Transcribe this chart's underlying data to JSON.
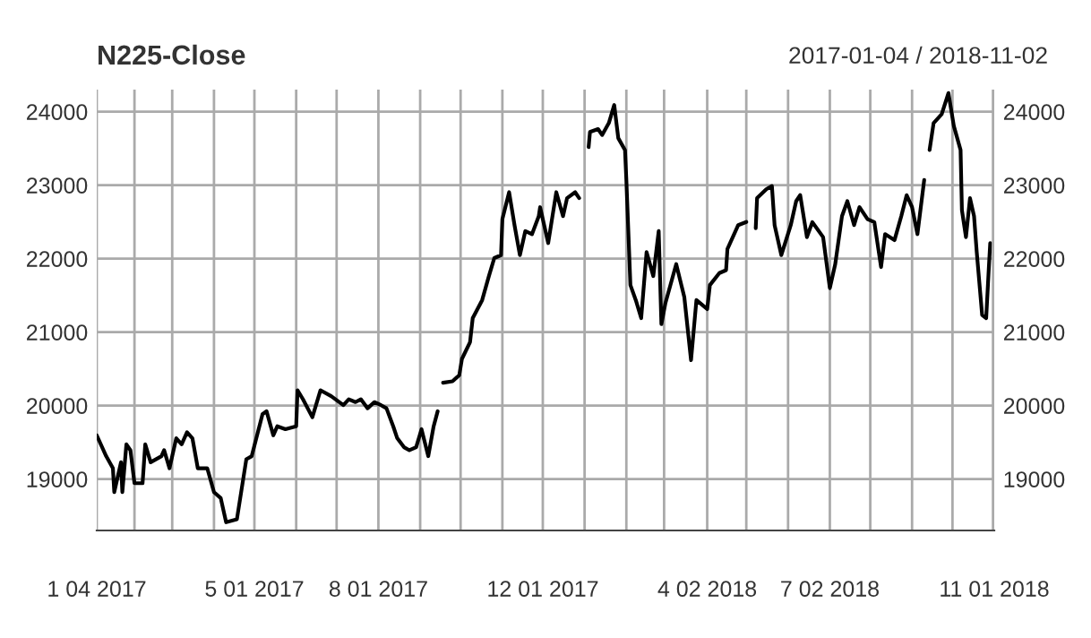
{
  "chart_data": {
    "type": "line",
    "title": "N225-Close",
    "subtitle": "2017-01-04 / 2018-11-02",
    "x": [
      "2017-01-04",
      "2017-01-11",
      "2017-01-16",
      "2017-01-17",
      "2017-01-22",
      "2017-01-23",
      "2017-01-26",
      "2017-01-29",
      "2017-02-01",
      "2017-02-07",
      "2017-02-09",
      "2017-02-13",
      "2017-02-21",
      "2017-02-23",
      "2017-02-27",
      "2017-03-04",
      "2017-03-08",
      "2017-03-12",
      "2017-03-16",
      "2017-03-20",
      "2017-03-27",
      "2017-04-01",
      "2017-04-06",
      "2017-04-10",
      "2017-04-18",
      "2017-04-25",
      "2017-04-29",
      "2017-05-07",
      "2017-05-10",
      "2017-05-15",
      "2017-05-18",
      "2017-05-24",
      "2017-06-01",
      "2017-06-02",
      "2017-06-06",
      "2017-06-13",
      "2017-06-19",
      "2017-06-27",
      "2017-07-06",
      "2017-07-10",
      "2017-07-15",
      "2017-07-19",
      "2017-07-24",
      "2017-07-29",
      "2017-08-03",
      "2017-08-07",
      "2017-08-12",
      "2017-08-15",
      "2017-08-20",
      "2017-08-24",
      "2017-08-29",
      "2017-09-02",
      "2017-09-07",
      "2017-09-11",
      "2017-09-14",
      "2017-09-17",
      "2017-09-18",
      "2017-09-25",
      "2017-09-30",
      "2017-10-02",
      "2017-10-08",
      "2017-10-10",
      "2017-10-17",
      "2017-10-22",
      "2017-10-26",
      "2017-10-31",
      "2017-11-01",
      "2017-11-06",
      "2017-11-10",
      "2017-11-14",
      "2017-11-18",
      "2017-11-23",
      "2017-11-28",
      "2017-11-29",
      "2017-12-05",
      "2017-12-11",
      "2017-12-16",
      "2017-12-19",
      "2017-12-25",
      "2017-12-28",
      "2018-01-01",
      "2018-01-04",
      "2018-01-05",
      "2018-01-11",
      "2018-01-14",
      "2018-01-19",
      "2018-01-23",
      "2018-01-26",
      "2018-01-31",
      "2018-02-01",
      "2018-02-04",
      "2018-02-08",
      "2018-02-12",
      "2018-02-16",
      "2018-02-21",
      "2018-02-25",
      "2018-02-27",
      "2018-03-02",
      "2018-03-10",
      "2018-03-16",
      "2018-03-21",
      "2018-03-25",
      "2018-04-02",
      "2018-04-04",
      "2018-04-11",
      "2018-04-16",
      "2018-04-17",
      "2018-04-25",
      "2018-05-01",
      "2018-05-04",
      "2018-05-08",
      "2018-05-09",
      "2018-05-16",
      "2018-05-20",
      "2018-05-22",
      "2018-05-27",
      "2018-06-03",
      "2018-06-07",
      "2018-06-10",
      "2018-06-15",
      "2018-06-19",
      "2018-06-27",
      "2018-07-02",
      "2018-07-06",
      "2018-07-11",
      "2018-07-15",
      "2018-07-20",
      "2018-07-24",
      "2018-07-30",
      "2018-08-04",
      "2018-08-09",
      "2018-08-12",
      "2018-08-19",
      "2018-08-24",
      "2018-08-28",
      "2018-09-01",
      "2018-09-05",
      "2018-09-10",
      "2018-09-13",
      "2018-09-14",
      "2018-09-17",
      "2018-09-23",
      "2018-09-28",
      "2018-10-02",
      "2018-10-07",
      "2018-10-08",
      "2018-10-11",
      "2018-10-14",
      "2018-10-17",
      "2018-10-19",
      "2018-10-23",
      "2018-10-26",
      "2018-10-28",
      "2018-10-29"
    ],
    "series": [
      {
        "color": "#000000",
        "values": [
          19595,
          19311,
          19147,
          18822,
          19228,
          18822,
          19473,
          19392,
          18943,
          18943,
          19473,
          19228,
          19311,
          19392,
          19147,
          19555,
          19473,
          19637,
          19555,
          19147,
          19147,
          18822,
          18740,
          18412,
          18453,
          19269,
          19311,
          19882,
          19923,
          19595,
          19718,
          19678,
          19718,
          20208,
          20086,
          19841,
          20208,
          20127,
          20005,
          20086,
          20047,
          20086,
          19963,
          20047,
          20005,
          19963,
          19718,
          19555,
          19433,
          19392,
          19433,
          19678,
          19311,
          19718,
          19923,
          null,
          20310,
          20331,
          20413,
          20635,
          20863,
          21190,
          21435,
          21762,
          22007,
          22047,
          22537,
          22904,
          22456,
          22047,
          22374,
          22333,
          22578,
          22700,
          22211,
          22904,
          22578,
          22823,
          22904,
          22823,
          null,
          23517,
          23723,
          23763,
          23682,
          23845,
          24090,
          23640,
          23478,
          23069,
          21640,
          21435,
          21190,
          22088,
          21762,
          22374,
          21108,
          21395,
          21925,
          21476,
          20618,
          21435,
          21313,
          21640,
          21803,
          21843,
          22130,
          22456,
          22498,
          null,
          22415,
          22823,
          22946,
          22988,
          22456,
          22047,
          22456,
          22782,
          22864,
          22292,
          22497,
          22292,
          21598,
          21925,
          22578,
          22782,
          22456,
          22700,
          22537,
          22497,
          21885,
          22333,
          22252,
          22578,
          22864,
          22700,
          22333,
          23069,
          null,
          23478,
          23845,
          23967,
          24253,
          23804,
          23478,
          22660,
          22292,
          22823,
          22578,
          22088,
          21231,
          21190,
          21885,
          22211
        ]
      }
    ],
    "xlim": [
      "2017-01-04",
      "2018-11-01"
    ],
    "xticks": [
      {
        "value": "2017-01-04",
        "label": "1 04 2017"
      },
      {
        "value": "2017-02-01",
        "label": null
      },
      {
        "value": "2017-03-01",
        "label": null
      },
      {
        "value": "2017-04-01",
        "label": null
      },
      {
        "value": "2017-05-01",
        "label": "5 01 2017"
      },
      {
        "value": "2017-06-01",
        "label": null
      },
      {
        "value": "2017-07-01",
        "label": null
      },
      {
        "value": "2017-08-01",
        "label": "8 01 2017"
      },
      {
        "value": "2017-09-01",
        "label": null
      },
      {
        "value": "2017-10-01",
        "label": null
      },
      {
        "value": "2017-11-01",
        "label": null
      },
      {
        "value": "2017-12-01",
        "label": "12 01 2017"
      },
      {
        "value": "2018-01-01",
        "label": null
      },
      {
        "value": "2018-02-01",
        "label": null
      },
      {
        "value": "2018-03-01",
        "label": null
      },
      {
        "value": "2018-04-02",
        "label": "4 02 2018"
      },
      {
        "value": "2018-05-01",
        "label": null
      },
      {
        "value": "2018-06-01",
        "label": null
      },
      {
        "value": "2018-07-02",
        "label": "7 02 2018"
      },
      {
        "value": "2018-08-01",
        "label": null
      },
      {
        "value": "2018-09-01",
        "label": null
      },
      {
        "value": "2018-10-01",
        "label": null
      },
      {
        "value": "2018-11-01",
        "label": "11 01 2018"
      }
    ],
    "ylim": [
      18300,
      24300
    ],
    "yticks": [
      19000,
      20000,
      21000,
      22000,
      23000,
      24000
    ],
    "y2lim": [
      18300,
      24300
    ],
    "y2ticks": [
      19000,
      20000,
      21000,
      22000,
      23000,
      24000
    ],
    "grid": true,
    "marker": "none",
    "line_style": "solid"
  }
}
